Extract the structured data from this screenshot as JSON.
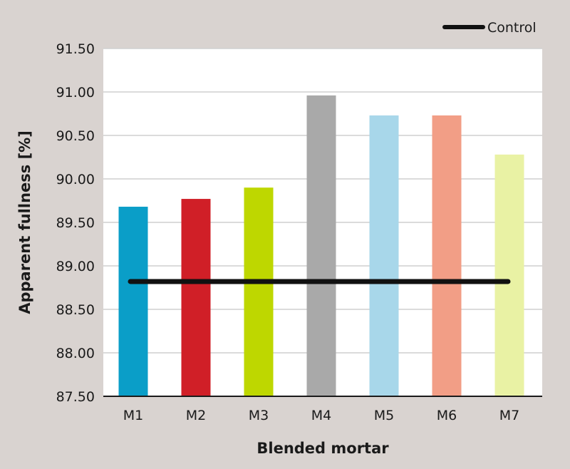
{
  "chart_data": {
    "type": "bar",
    "title": "",
    "xlabel": "Blended mortar",
    "ylabel": "Apparent fullness [%]",
    "ylim": [
      87.5,
      91.5
    ],
    "ytick_step": 0.5,
    "ytick_labels": [
      "87.50",
      "88.00",
      "88.50",
      "89.00",
      "89.50",
      "90.00",
      "90.50",
      "91.00",
      "91.50"
    ],
    "grid": true,
    "legend_position": "top-right",
    "categories": [
      "M1",
      "M2",
      "M3",
      "M4",
      "M5",
      "M6",
      "M7"
    ],
    "values": [
      89.68,
      89.77,
      89.9,
      90.96,
      90.73,
      90.73,
      90.28
    ],
    "bar_colors": [
      "#0a9ec8",
      "#d01f27",
      "#bed700",
      "#a9a9a9",
      "#a8d7ea",
      "#f29e86",
      "#e9f2a4"
    ],
    "reference_line": {
      "name": "Control",
      "value": 88.82,
      "color": "#111111"
    }
  }
}
